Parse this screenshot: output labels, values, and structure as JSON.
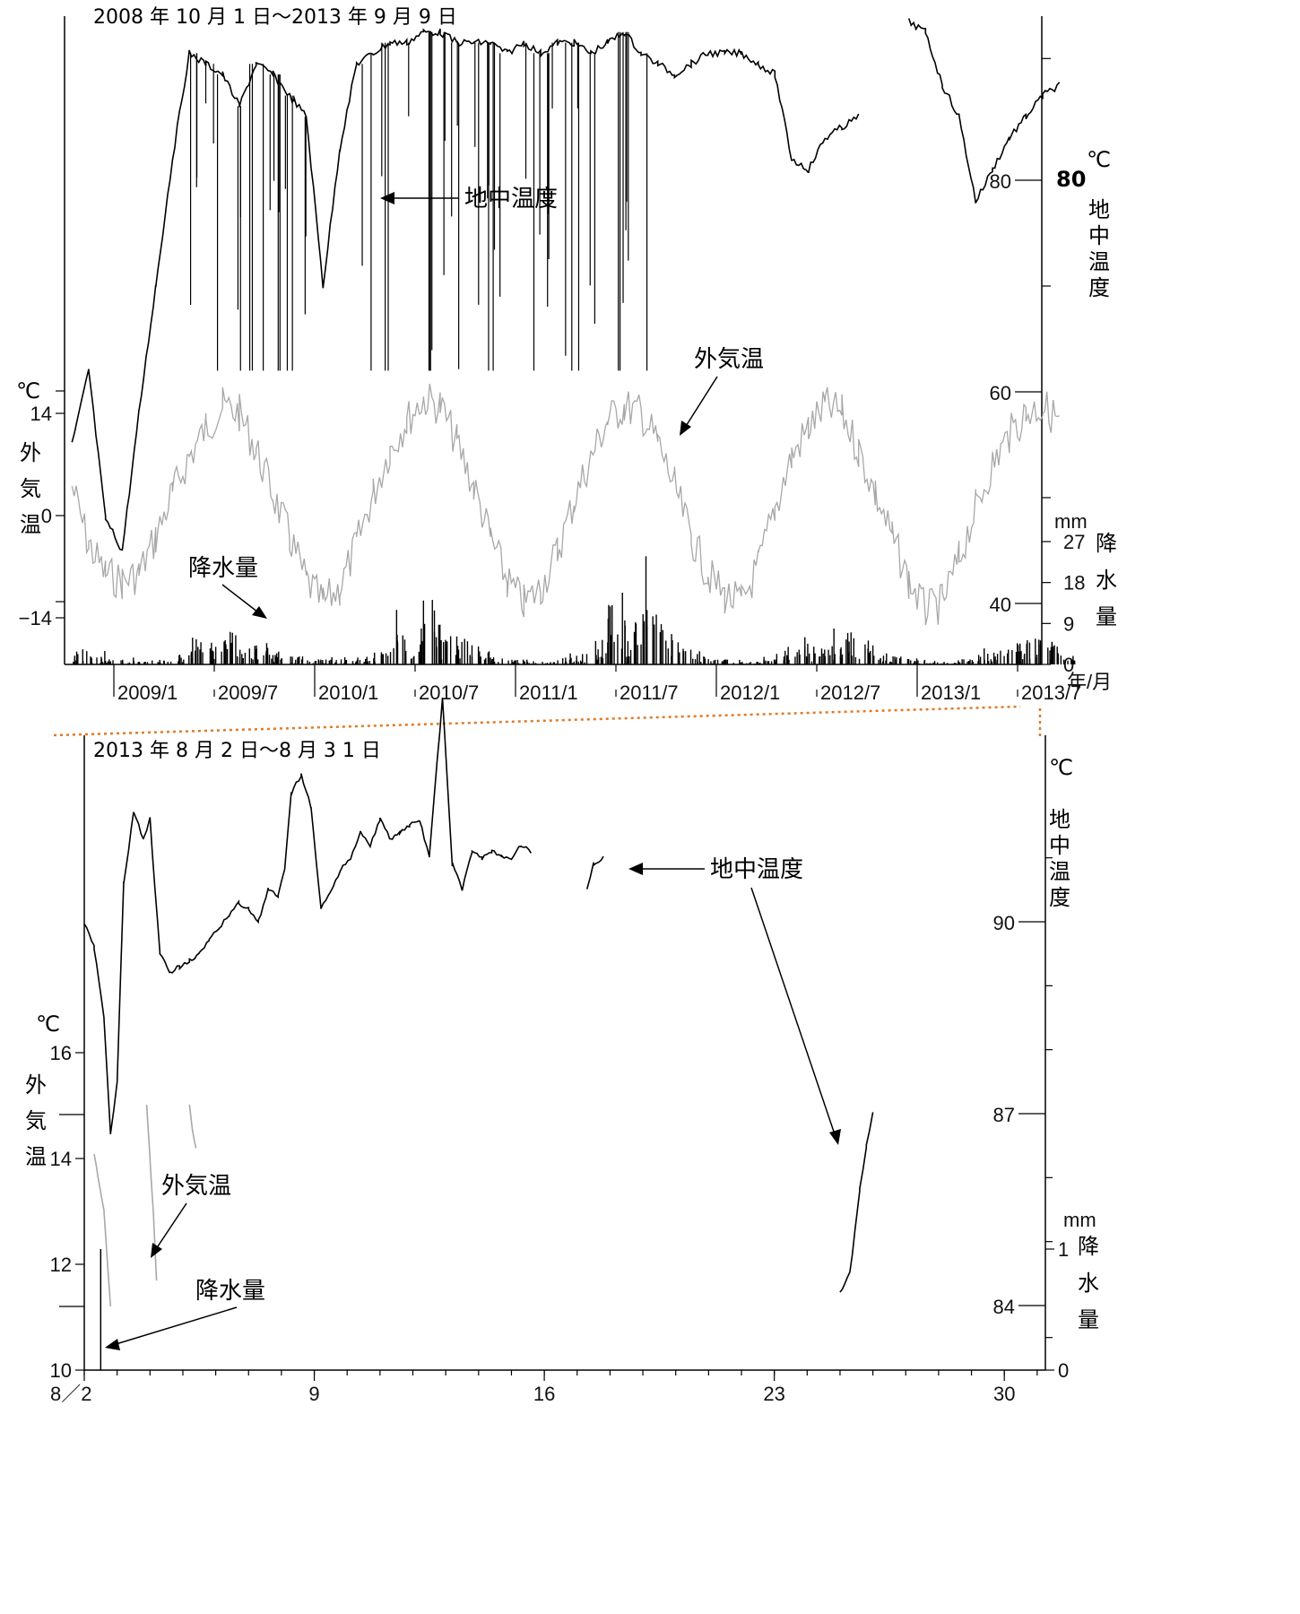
{
  "chart_data": [
    {
      "type": "line",
      "title": "2008 年 10 月 1 日〜2013 年 9 月 9 日",
      "xlabel": "年/月",
      "x_ticks": [
        "2009/1",
        "2009/7",
        "2010/1",
        "2010/7",
        "2011/1",
        "2011/7",
        "2012/1",
        "2012/7",
        "2013/1",
        "2013/7"
      ],
      "xlim": [
        "2008-10-01",
        "2013-09-09"
      ],
      "axes": {
        "left": {
          "unit": "℃",
          "label": "外気温",
          "ticks": [
            14,
            0,
            -14
          ],
          "range": [
            -20,
            30
          ]
        },
        "right_ground": {
          "unit": "℃",
          "label": "地中温度",
          "ticks": [
            80,
            60,
            40
          ],
          "range": [
            34,
            98
          ]
        },
        "right_rain": {
          "unit": "mm",
          "label": "降水量",
          "ticks": [
            27,
            18,
            9,
            0
          ],
          "range": [
            0,
            30
          ]
        }
      },
      "series": [
        {
          "name": "地中温度",
          "axis": "right_ground",
          "color": "#000000",
          "x": [
            "2008-10",
            "2008-11",
            "2008-12",
            "2009-01",
            "2009-02",
            "2009-03",
            "2009-04",
            "2009-05",
            "2009-06",
            "2009-07",
            "2009-08",
            "2009-09",
            "2009-10",
            "2009-11",
            "2009-12",
            "2010-01",
            "2010-02",
            "2010-03",
            "2010-04",
            "2010-05",
            "2010-06",
            "2010-07",
            "2010-08",
            "2010-09",
            "2010-10",
            "2010-11",
            "2010-12",
            "2011-01",
            "2011-02",
            "2011-03",
            "2011-04",
            "2011-05",
            "2011-06",
            "2011-07",
            "2011-08",
            "2011-09",
            "2011-10",
            "2011-11",
            "2011-12",
            "2012-01",
            "2012-02",
            "2012-03",
            "2012-04",
            "2012-05",
            "2012-06",
            "2012-07",
            "2012-08",
            "2012-09",
            "2012-10",
            "2012-11",
            "2012-12",
            "2013-01",
            "2013-02",
            "2013-03",
            "2013-04",
            "2013-05",
            "2013-06",
            "2013-07",
            "2013-08",
            "2013-09"
          ],
          "values": [
            55,
            62,
            48,
            45,
            58,
            70,
            82,
            92,
            91,
            90,
            87,
            91,
            90,
            88,
            86,
            70,
            83,
            91,
            92,
            93,
            93,
            94,
            94,
            93,
            93,
            93,
            92,
            93,
            92,
            93,
            93,
            92,
            93,
            94,
            92,
            91,
            90,
            91,
            92,
            92,
            92,
            91,
            90,
            82,
            81,
            84,
            85,
            86,
            null,
            null,
            95,
            94,
            89,
            86,
            78,
            81,
            84,
            86,
            88,
            89
          ]
        },
        {
          "name": "外気温",
          "axis": "left",
          "color": "#a8a8a8",
          "x": [
            "2008-10",
            "2008-11",
            "2008-12",
            "2009-01",
            "2009-02",
            "2009-03",
            "2009-04",
            "2009-05",
            "2009-06",
            "2009-07",
            "2009-08",
            "2009-09",
            "2009-10",
            "2009-11",
            "2009-12",
            "2010-01",
            "2010-02",
            "2010-03",
            "2010-04",
            "2010-05",
            "2010-06",
            "2010-07",
            "2010-08",
            "2010-09",
            "2010-10",
            "2010-11",
            "2010-12",
            "2011-01",
            "2011-02",
            "2011-03",
            "2011-04",
            "2011-05",
            "2011-06",
            "2011-07",
            "2011-08",
            "2011-09",
            "2011-10",
            "2011-11",
            "2011-12",
            "2012-01",
            "2012-02",
            "2012-03",
            "2012-04",
            "2012-05",
            "2012-06",
            "2012-07",
            "2012-08",
            "2012-09",
            "2012-10",
            "2012-11",
            "2012-12",
            "2013-01",
            "2013-02",
            "2013-03",
            "2013-04",
            "2013-05",
            "2013-06",
            "2013-07",
            "2013-08",
            "2013-09"
          ],
          "values": [
            4,
            -4,
            -8,
            -9,
            -8,
            -3,
            3,
            8,
            12,
            15,
            14,
            9,
            3,
            -3,
            -9,
            -12,
            -10,
            -4,
            3,
            9,
            13,
            16,
            15,
            10,
            4,
            -3,
            -9,
            -12,
            -10,
            -5,
            2,
            8,
            13,
            15,
            14,
            10,
            4,
            -3,
            -8,
            -11,
            -12,
            -7,
            1,
            8,
            12,
            15,
            14,
            9,
            3,
            -3,
            -9,
            -13,
            -12,
            -6,
            1,
            7,
            11,
            14,
            15,
            13
          ]
        },
        {
          "name": "降水量",
          "axis": "right_rain",
          "type": "bar",
          "color": "#000000",
          "x": [
            "2008-10",
            "2008-11",
            "2008-12",
            "2009-01",
            "2009-02",
            "2009-03",
            "2009-04",
            "2009-05",
            "2009-06",
            "2009-07",
            "2009-08",
            "2009-09",
            "2009-10",
            "2009-11",
            "2009-12",
            "2010-01",
            "2010-02",
            "2010-03",
            "2010-04",
            "2010-05",
            "2010-06",
            "2010-07",
            "2010-08",
            "2010-09",
            "2010-10",
            "2010-11",
            "2010-12",
            "2011-01",
            "2011-02",
            "2011-03",
            "2011-04",
            "2011-05",
            "2011-06",
            "2011-07",
            "2011-08",
            "2011-09",
            "2011-10",
            "2011-11",
            "2011-12",
            "2012-01",
            "2012-02",
            "2012-03",
            "2012-04",
            "2012-05",
            "2012-06",
            "2012-07",
            "2012-08",
            "2012-09",
            "2012-10",
            "2012-11",
            "2012-12",
            "2013-01",
            "2013-02",
            "2013-03",
            "2013-04",
            "2013-05",
            "2013-06",
            "2013-07",
            "2013-08",
            "2013-09"
          ],
          "values": [
            5,
            3,
            2,
            2,
            1,
            2,
            4,
            10,
            8,
            12,
            9,
            7,
            5,
            3,
            2,
            2,
            2,
            3,
            5,
            12,
            9,
            25,
            12,
            10,
            5,
            3,
            2,
            2,
            1,
            3,
            4,
            9,
            22,
            18,
            24,
            15,
            6,
            4,
            2,
            2,
            1,
            2,
            5,
            9,
            7,
            8,
            12,
            8,
            4,
            3,
            2,
            1,
            1,
            2,
            4,
            6,
            8,
            13,
            9,
            5
          ]
        }
      ]
    },
    {
      "type": "line",
      "title": "2013 年 8 月 2 日〜8 月 3 1 日",
      "x_ticks": [
        "8／2",
        "9",
        "16",
        "23",
        "30"
      ],
      "xlim": [
        2,
        31.5
      ],
      "axes": {
        "left": {
          "unit": "℃",
          "label": "外気温",
          "ticks": [
            16,
            14,
            12,
            10
          ],
          "range": [
            10,
            22
          ]
        },
        "right_ground": {
          "unit": "℃",
          "label": "地中温度",
          "ticks": [
            90,
            87,
            84
          ],
          "range": [
            83,
            93
          ]
        },
        "right_rain": {
          "unit": "mm",
          "label": "降水量",
          "ticks": [
            1,
            0
          ],
          "range": [
            0,
            2
          ]
        }
      },
      "series": [
        {
          "name": "地中温度",
          "axis": "right_ground",
          "color": "#000000",
          "x": [
            2.0,
            2.3,
            2.6,
            2.8,
            3.0,
            3.2,
            3.5,
            3.8,
            4.0,
            4.3,
            4.6,
            4.9,
            5.2,
            5.5,
            5.8,
            6.1,
            6.4,
            6.7,
            7.0,
            7.3,
            7.6,
            7.9,
            8.1,
            8.3,
            8.6,
            8.9,
            9.2,
            9.5,
            9.8,
            10.1,
            10.4,
            10.7,
            11.0,
            11.3,
            11.6,
            11.9,
            12.2,
            12.5,
            12.9,
            13.2,
            13.5,
            13.8,
            14.1,
            14.4,
            14.7,
            15.0,
            15.3,
            15.6,
            null,
            17.3,
            17.5,
            17.8,
            null,
            25.0,
            25.3,
            25.6,
            25.8,
            26.0
          ],
          "values": [
            90.0,
            89.6,
            88.5,
            86.7,
            87.5,
            90.6,
            91.7,
            91.3,
            91.6,
            89.5,
            89.2,
            89.3,
            89.4,
            89.5,
            89.7,
            89.9,
            90.1,
            90.3,
            90.2,
            90.0,
            90.5,
            90.4,
            90.8,
            92.0,
            92.3,
            91.8,
            90.2,
            90.5,
            90.8,
            91.0,
            91.4,
            91.2,
            91.6,
            91.3,
            91.4,
            91.5,
            91.6,
            91.0,
            93.5,
            90.9,
            90.5,
            91.1,
            91.0,
            91.1,
            91.0,
            91.0,
            91.2,
            91.1,
            null,
            90.5,
            90.9,
            91.0,
            null,
            84.2,
            84.5,
            85.8,
            86.5,
            87.0
          ]
        },
        {
          "name": "外気温",
          "axis": "left",
          "color": "#a8a8a8",
          "x": [
            2.3,
            2.6,
            2.8,
            null,
            3.9,
            4.0,
            4.1,
            4.2,
            null,
            5.2,
            5.3,
            5.4
          ],
          "values": [
            14.1,
            13.0,
            11.2,
            null,
            15.0,
            14.0,
            13.0,
            11.7,
            null,
            15.0,
            14.5,
            14.2
          ]
        },
        {
          "name": "降水量",
          "axis": "right_rain",
          "type": "bar",
          "color": "#000000",
          "x": [
            2.5
          ],
          "values": [
            1.0
          ]
        }
      ]
    }
  ],
  "labels": {
    "ground_temp": "地中温度",
    "air_temp": "外気温",
    "precip": "降水量",
    "unit_c": "℃",
    "unit_mm": "mm",
    "ym_unit": "年/月",
    "air_label_chars": [
      "外",
      "気",
      "温"
    ],
    "ground_label_chars": [
      "地",
      "中",
      "温",
      "度"
    ],
    "precip_label_chars": [
      "降",
      "水",
      "量"
    ]
  }
}
